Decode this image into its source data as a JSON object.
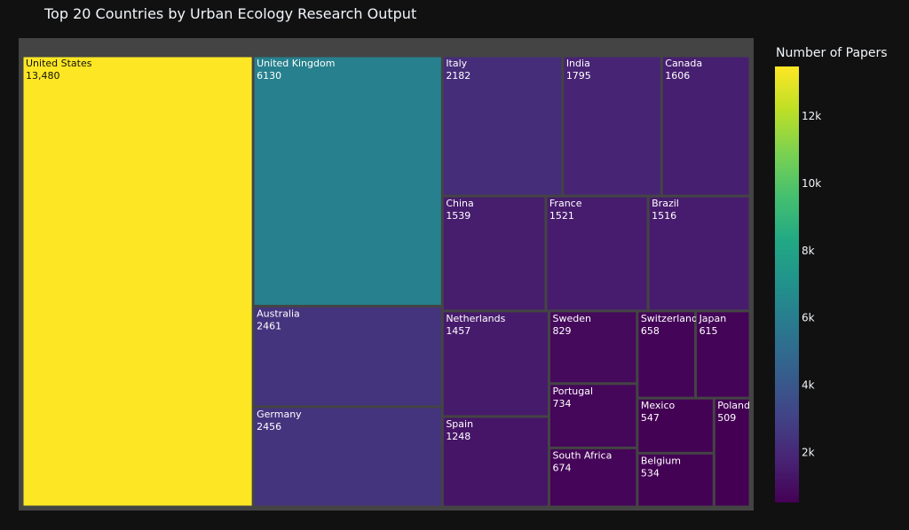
{
  "title": "Top 20 Countries by Urban Ecology Research Output",
  "colorbar": {
    "title": "Number of Papers",
    "ticks": [
      {
        "value": 2000,
        "label": "2k"
      },
      {
        "value": 4000,
        "label": "4k"
      },
      {
        "value": 6000,
        "label": "6k"
      },
      {
        "value": 8000,
        "label": "8k"
      },
      {
        "value": 10000,
        "label": "10k"
      },
      {
        "value": 12000,
        "label": "12k"
      }
    ]
  },
  "chart_data": {
    "type": "treemap",
    "title": "Top 20 Countries by Urban Ecology Research Output",
    "colorscale": "Viridis",
    "color_range": [
      509,
      13480
    ],
    "items": [
      {
        "label": "United States",
        "value": 13480,
        "text": "13,480"
      },
      {
        "label": "United Kingdom",
        "value": 6130,
        "text": "6130"
      },
      {
        "label": "Australia",
        "value": 2461,
        "text": "2461"
      },
      {
        "label": "Germany",
        "value": 2456,
        "text": "2456"
      },
      {
        "label": "Italy",
        "value": 2182,
        "text": "2182"
      },
      {
        "label": "India",
        "value": 1795,
        "text": "1795"
      },
      {
        "label": "Canada",
        "value": 1606,
        "text": "1606"
      },
      {
        "label": "China",
        "value": 1539,
        "text": "1539"
      },
      {
        "label": "France",
        "value": 1521,
        "text": "1521"
      },
      {
        "label": "Brazil",
        "value": 1516,
        "text": "1516"
      },
      {
        "label": "Netherlands",
        "value": 1457,
        "text": "1457"
      },
      {
        "label": "Spain",
        "value": 1248,
        "text": "1248"
      },
      {
        "label": "Sweden",
        "value": 829,
        "text": "829"
      },
      {
        "label": "Portugal",
        "value": 734,
        "text": "734"
      },
      {
        "label": "South Africa",
        "value": 674,
        "text": "674"
      },
      {
        "label": "Switzerland",
        "value": 658,
        "text": "658"
      },
      {
        "label": "Japan",
        "value": 615,
        "text": "615"
      },
      {
        "label": "Mexico",
        "value": 547,
        "text": "547"
      },
      {
        "label": "Belgium",
        "value": 534,
        "text": "534"
      },
      {
        "label": "Poland",
        "value": 509,
        "text": "509"
      }
    ]
  }
}
